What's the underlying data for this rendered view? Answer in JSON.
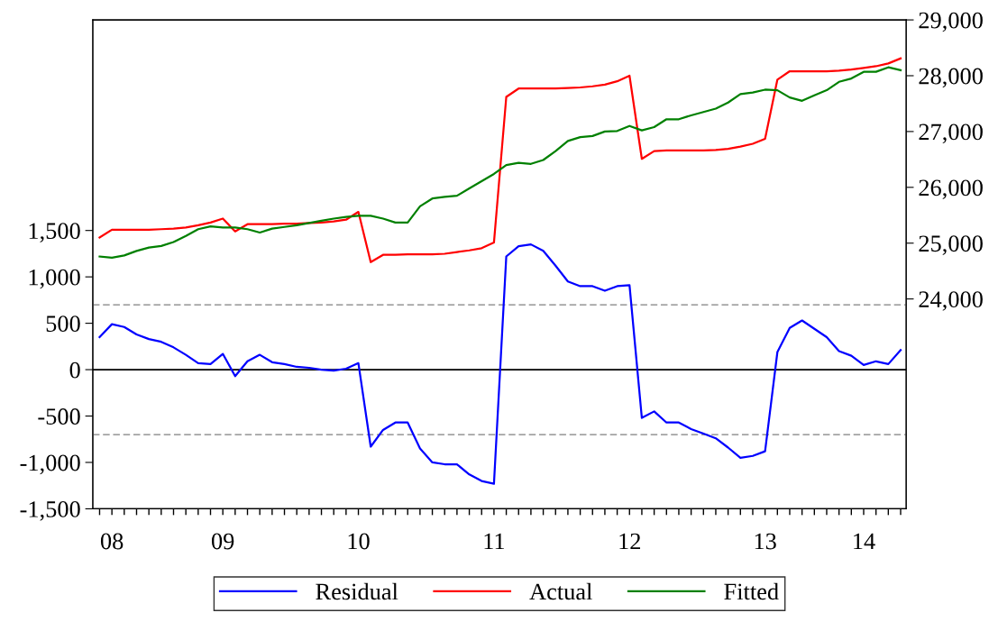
{
  "chart_data": {
    "type": "line",
    "categories": [
      null,
      "08",
      null,
      null,
      null,
      null,
      null,
      null,
      null,
      null,
      "09",
      null,
      null,
      null,
      null,
      null,
      null,
      null,
      null,
      null,
      null,
      "10",
      null,
      null,
      null,
      null,
      null,
      null,
      null,
      null,
      null,
      null,
      "11",
      null,
      null,
      null,
      null,
      null,
      null,
      null,
      null,
      null,
      null,
      "12",
      null,
      null,
      null,
      null,
      null,
      null,
      null,
      null,
      null,
      null,
      "13",
      null,
      null,
      null,
      null,
      null,
      null,
      null,
      "14",
      null,
      null,
      null
    ],
    "series": [
      {
        "name": "Residual",
        "color": "#0000ff",
        "axis": "y",
        "values": [
          350,
          490,
          460,
          380,
          330,
          300,
          240,
          160,
          70,
          60,
          170,
          -70,
          90,
          160,
          80,
          60,
          30,
          20,
          0,
          -10,
          10,
          70,
          -830,
          -650,
          -570,
          -570,
          -850,
          -1000,
          -1020,
          -1020,
          -1130,
          -1200,
          -1230,
          1220,
          1330,
          1350,
          1280,
          1120,
          950,
          900,
          900,
          850,
          900,
          910,
          -520,
          -450,
          -570,
          -570,
          -640,
          -690,
          -740,
          -840,
          -950,
          -930,
          -880,
          190,
          450,
          530,
          440,
          350,
          200,
          150,
          50,
          90,
          60,
          210
        ]
      },
      {
        "name": "Actual",
        "color": "#ff0000",
        "axis": "y2",
        "values": [
          25100,
          25240,
          25240,
          25240,
          25240,
          25250,
          25260,
          25280,
          25320,
          25370,
          25440,
          25210,
          25340,
          25340,
          25340,
          25350,
          25350,
          25360,
          25370,
          25390,
          25420,
          25560,
          24660,
          24790,
          24790,
          24800,
          24800,
          24800,
          24810,
          24840,
          24870,
          24910,
          25010,
          27620,
          27770,
          27770,
          27770,
          27770,
          27780,
          27790,
          27810,
          27840,
          27900,
          28000,
          26510,
          26650,
          26660,
          26660,
          26660,
          26660,
          26670,
          26690,
          26730,
          26780,
          26870,
          27930,
          28080,
          28080,
          28080,
          28080,
          28090,
          28110,
          28140,
          28170,
          28220,
          28310
        ]
      },
      {
        "name": "Fitted",
        "color": "#008000",
        "axis": "y2",
        "values": [
          24760,
          24740,
          24780,
          24860,
          24920,
          24950,
          25020,
          25130,
          25250,
          25300,
          25280,
          25280,
          25250,
          25190,
          25260,
          25290,
          25320,
          25360,
          25400,
          25440,
          25470,
          25490,
          25490,
          25440,
          25370,
          25370,
          25660,
          25800,
          25830,
          25850,
          25980,
          26110,
          26240,
          26400,
          26440,
          26420,
          26490,
          26650,
          26830,
          26900,
          26920,
          27000,
          27010,
          27100,
          27020,
          27080,
          27220,
          27220,
          27290,
          27350,
          27410,
          27520,
          27670,
          27700,
          27750,
          27740,
          27610,
          27550,
          27650,
          27740,
          27890,
          27950,
          28070,
          28070,
          28150,
          28100
        ]
      }
    ],
    "ylim": [
      -1500,
      3770
    ],
    "yticks": [
      {
        "value": -1500,
        "label": "-1,500"
      },
      {
        "value": -1000,
        "label": "-1,000"
      },
      {
        "value": -500,
        "label": "-500"
      },
      {
        "value": 0,
        "label": "0"
      },
      {
        "value": 500,
        "label": "500"
      },
      {
        "value": 1000,
        "label": "1,000"
      },
      {
        "value": 1500,
        "label": "1,500"
      }
    ],
    "y2lim": [
      20240,
      29000
    ],
    "y2ticks": [
      {
        "value": 24000,
        "label": "24,000"
      },
      {
        "value": 25000,
        "label": "25,000"
      },
      {
        "value": 26000,
        "label": "26,000"
      },
      {
        "value": 27000,
        "label": "27,000"
      },
      {
        "value": 28000,
        "label": "28,000"
      },
      {
        "value": 29000,
        "label": "29,000"
      }
    ],
    "ref_lines": [
      {
        "axis": "y",
        "value": 0,
        "color": "#000000",
        "line_style": "solid"
      },
      {
        "axis": "y",
        "value": 700,
        "color": "#808080",
        "line_style": "dashed"
      },
      {
        "axis": "y",
        "value": -700,
        "color": "#808080",
        "line_style": "dashed"
      }
    ],
    "grid": false,
    "legend": "bottom",
    "marker": "none",
    "line_style": "solid"
  }
}
